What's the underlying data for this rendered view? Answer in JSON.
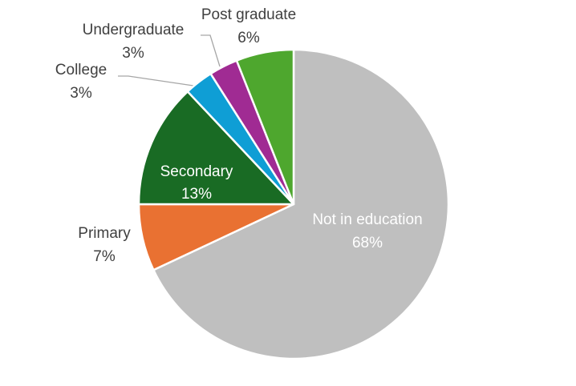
{
  "chart_data": {
    "type": "pie",
    "categories": [
      "Not in education",
      "Primary",
      "Secondary",
      "College",
      "Undergraduate",
      "Post graduate"
    ],
    "values": [
      68,
      7,
      13,
      3,
      3,
      6
    ],
    "value_labels": [
      "68%",
      "7%",
      "13%",
      "3%",
      "3%",
      "6%"
    ],
    "colors": [
      "#bfbfbf",
      "#e97132",
      "#196b24",
      "#0f9ed5",
      "#a02b93",
      "#4ea72e"
    ]
  }
}
